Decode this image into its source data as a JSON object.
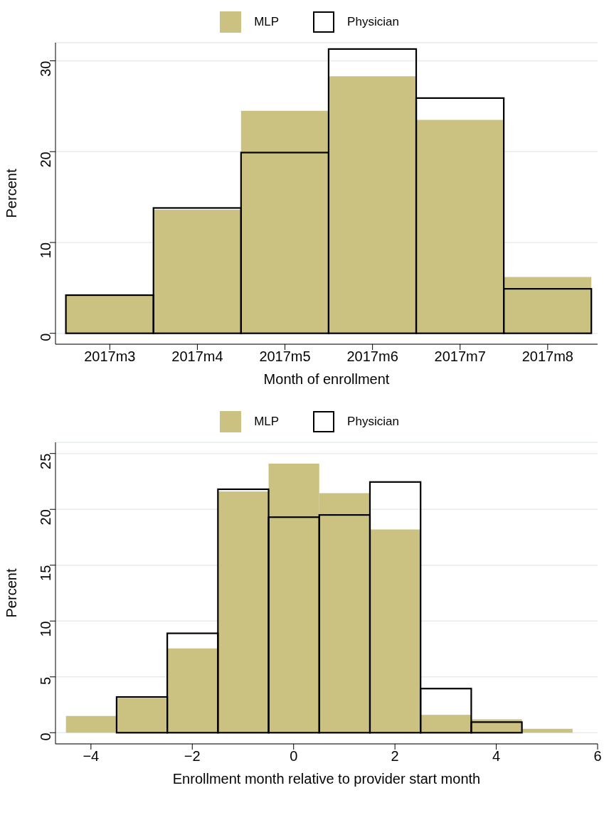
{
  "chart_data": [
    {
      "type": "bar",
      "categories": [
        "2017m3",
        "2017m4",
        "2017m5",
        "2017m6",
        "2017m7",
        "2017m8"
      ],
      "series": [
        {
          "name": "MLP",
          "color": "#cbc281",
          "values": [
            4.3,
            13.6,
            24.5,
            28.3,
            23.5,
            6.2
          ]
        },
        {
          "name": "Physician",
          "color": "#000000",
          "values": [
            4.2,
            13.8,
            19.9,
            31.3,
            25.9,
            4.9
          ]
        }
      ],
      "ylim": [
        -1.2,
        32
      ],
      "yticks": [
        0,
        10,
        20,
        30
      ],
      "xlabel": "Month of enrollment",
      "ylabel": "Percent",
      "grid": "y",
      "legend": "top"
    },
    {
      "type": "histogram",
      "bins": [
        -4.5,
        -3.5,
        -2.5,
        -1.5,
        -0.5,
        0.5,
        1.5,
        2.5,
        3.5,
        4.5,
        5.5
      ],
      "series": [
        {
          "name": "MLP",
          "color": "#cbc281",
          "values": [
            1.5,
            3.1,
            7.55,
            21.6,
            24.1,
            21.45,
            18.2,
            1.6,
            1.2,
            0.35
          ]
        },
        {
          "name": "Physician",
          "color": "#000000",
          "values": [
            null,
            3.2,
            8.9,
            21.8,
            19.3,
            19.5,
            22.45,
            3.95,
            0.95,
            null
          ]
        }
      ],
      "xlim": [
        -4.7,
        6
      ],
      "xticks": [
        {
          "value": -4,
          "label": "−4"
        },
        {
          "value": -2,
          "label": "−2"
        },
        0,
        2,
        4,
        6
      ],
      "ylim": [
        -1,
        26
      ],
      "yticks": [
        0,
        5,
        10,
        15,
        20,
        25
      ],
      "xlabel": "Enrollment month relative to provider start month",
      "ylabel": "Percent",
      "grid": "y",
      "legend": "top"
    }
  ]
}
